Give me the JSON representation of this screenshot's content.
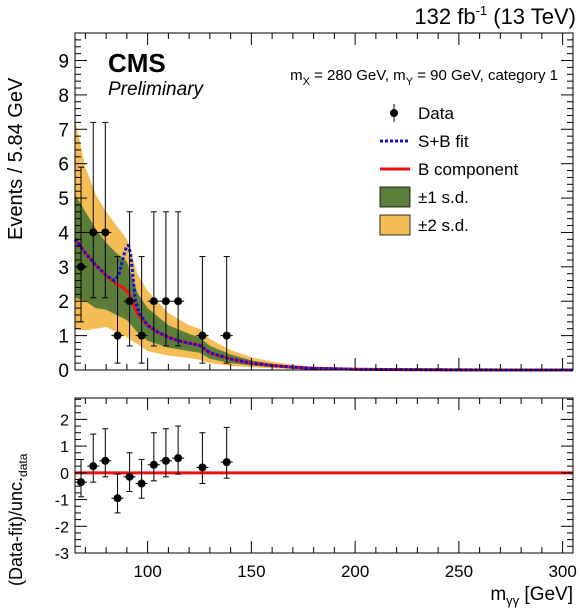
{
  "header": {
    "lumi": "132 fb",
    "lumi_exp": "-1",
    "energy": "(13 TeV)",
    "experiment": "CMS",
    "status": "Preliminary",
    "info_mx": "m",
    "info_mx_sub": "X",
    "info_rest1": " = 280 GeV, m",
    "info_my_sub": "Y",
    "info_rest2": " = 90 GeV, category 1"
  },
  "colors": {
    "band2": "#f5bd55",
    "band1": "#5b7d3a",
    "bkg": "#ee1111",
    "sb": "#1010dd",
    "data": "#000000"
  },
  "chart_data": [
    {
      "type": "scatter",
      "panel": "main",
      "ylabel": "Events / 5.84 GeV",
      "xlim": [
        65,
        305
      ],
      "ylim": [
        0,
        9.8
      ],
      "yticks": [
        0,
        1,
        2,
        3,
        4,
        5,
        6,
        7,
        8,
        9
      ],
      "grid": false,
      "legend_placement": "right",
      "legend": [
        {
          "key": "data",
          "label": "Data"
        },
        {
          "key": "sb",
          "label": "S+B fit"
        },
        {
          "key": "bkg",
          "label": "B component"
        },
        {
          "key": "band1",
          "label": "±1 s.d."
        },
        {
          "key": "band2",
          "label": "±2 s.d."
        }
      ],
      "data_points": {
        "x": [
          67.9,
          73.8,
          79.6,
          85.5,
          91.3,
          97.1,
          103.0,
          108.8,
          114.7,
          126.4,
          138.1
        ],
        "y": [
          3,
          4,
          4,
          1,
          2,
          1,
          2,
          2,
          2,
          1,
          1
        ],
        "err_lo": [
          1.6,
          1.9,
          1.9,
          0.8,
          1.3,
          0.8,
          1.3,
          1.3,
          1.3,
          0.8,
          0.8
        ],
        "err_hi": [
          2.9,
          3.2,
          3.2,
          2.3,
          2.6,
          2.3,
          2.6,
          2.6,
          2.6,
          2.3,
          2.3
        ],
        "x_half_width": 2.92
      },
      "bkg_curve": {
        "x": [
          65,
          70,
          75,
          80,
          85,
          88,
          90,
          92,
          95,
          100,
          105,
          110,
          115,
          120,
          125,
          130,
          140,
          150,
          160,
          170,
          180,
          200,
          250,
          305
        ],
        "y": [
          3.8,
          3.4,
          3.05,
          2.75,
          2.5,
          2.4,
          2.3,
          2.1,
          1.65,
          1.3,
          1.1,
          0.95,
          0.85,
          0.78,
          0.72,
          0.5,
          0.32,
          0.2,
          0.13,
          0.08,
          0.05,
          0.02,
          0.003,
          0.0
        ]
      },
      "sb_curve": {
        "x": [
          65,
          70,
          75,
          80,
          84,
          86,
          88,
          89,
          90,
          90.5,
          91,
          92,
          93,
          94,
          96,
          100,
          105,
          110,
          115,
          120,
          125,
          130,
          140,
          150,
          160,
          170,
          180,
          200,
          250,
          305
        ],
        "y": [
          3.8,
          3.4,
          3.05,
          2.75,
          2.6,
          2.75,
          3.2,
          3.45,
          3.6,
          3.62,
          3.6,
          3.3,
          2.7,
          2.05,
          1.65,
          1.3,
          1.1,
          0.95,
          0.85,
          0.78,
          0.72,
          0.5,
          0.32,
          0.2,
          0.13,
          0.08,
          0.05,
          0.02,
          0.003,
          0.0
        ]
      },
      "band_1sd": {
        "x": [
          65,
          70,
          75,
          80,
          85,
          90,
          95,
          100,
          110,
          120,
          125,
          130,
          140,
          150,
          160,
          170,
          180,
          200,
          250,
          305
        ],
        "lo": [
          2.1,
          2.0,
          1.8,
          1.75,
          1.6,
          1.45,
          1.1,
          0.85,
          0.65,
          0.55,
          0.5,
          0.33,
          0.2,
          0.13,
          0.08,
          0.05,
          0.03,
          0.01,
          0.001,
          0.0
        ],
        "hi": [
          5.1,
          4.6,
          4.1,
          3.7,
          3.4,
          3.15,
          2.25,
          1.8,
          1.3,
          1.05,
          0.95,
          0.7,
          0.45,
          0.28,
          0.18,
          0.11,
          0.07,
          0.03,
          0.005,
          0.0
        ]
      },
      "band_2sd": {
        "x": [
          65,
          70,
          75,
          80,
          85,
          90,
          95,
          100,
          110,
          120,
          125,
          130,
          140,
          150,
          160,
          170,
          180,
          200,
          250,
          305
        ],
        "lo": [
          1.2,
          1.15,
          1.2,
          1.25,
          1.1,
          0.95,
          0.75,
          0.55,
          0.42,
          0.35,
          0.3,
          0.2,
          0.12,
          0.08,
          0.05,
          0.03,
          0.02,
          0.006,
          0.0005,
          0.0
        ],
        "hi": [
          7.3,
          5.9,
          5.1,
          4.6,
          4.2,
          3.8,
          2.8,
          2.3,
          1.65,
          1.3,
          1.2,
          0.9,
          0.58,
          0.37,
          0.24,
          0.15,
          0.09,
          0.04,
          0.007,
          0.0
        ]
      }
    },
    {
      "type": "scatter",
      "panel": "ratio",
      "xlabel": "m",
      "xlabel_sub": "γγ",
      "xlabel_unit": " [GeV]",
      "ylabel": "(Data-fit)/unc.",
      "ylabel_sub": "data",
      "xlim": [
        65,
        305
      ],
      "ylim": [
        -3,
        2.8
      ],
      "yticks": [
        -3,
        -2,
        -1,
        0,
        1,
        2
      ],
      "xticks": [
        100,
        150,
        200,
        250,
        300
      ],
      "reference_line": 0,
      "points": {
        "x": [
          67.9,
          73.8,
          79.6,
          85.5,
          91.3,
          97.1,
          103.0,
          108.8,
          114.7,
          126.4,
          138.1
        ],
        "y": [
          -0.35,
          0.25,
          0.45,
          -0.95,
          -0.15,
          -0.4,
          0.3,
          0.45,
          0.55,
          0.2,
          0.4
        ],
        "err_lo": [
          0.55,
          0.6,
          0.6,
          0.55,
          0.55,
          0.55,
          0.6,
          0.6,
          0.6,
          0.6,
          0.6
        ],
        "err_hi": [
          0.85,
          1.2,
          1.2,
          0.9,
          0.9,
          0.9,
          1.2,
          1.2,
          1.2,
          1.3,
          1.3
        ],
        "x_half_width": 2.92
      }
    }
  ]
}
